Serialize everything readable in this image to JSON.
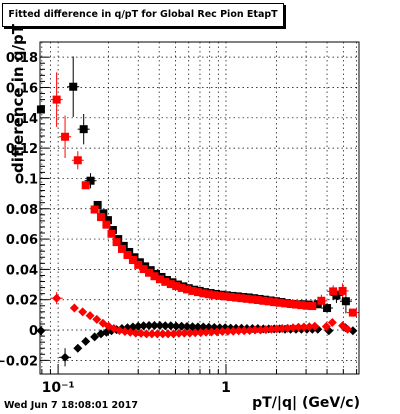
{
  "title": "Fitted difference in q/pT for Global Rec Pion EtapT",
  "datestamp": "Wed Jun  7 18:08:01 2017",
  "colors": {
    "red": "#ff0000",
    "black": "#000000"
  },
  "chart_data": {
    "type": "scatter",
    "title": "Fitted difference in q/pT for Global Rec Pion EtapT",
    "xlabel": "pT/|q| (GeV/c)",
    "ylabel": "difference in q/pT",
    "xscale": "log",
    "xlim": [
      0.078,
      6.2
    ],
    "ylim": [
      -0.029,
      0.19
    ],
    "grid": true,
    "x_tick_labels": [
      {
        "value": 0.1,
        "text": "10⁻¹"
      },
      {
        "value": 1,
        "text": "1"
      }
    ],
    "y_ticks": [
      -0.02,
      0,
      0.02,
      0.04,
      0.06,
      0.08,
      0.1,
      0.12,
      0.14,
      0.16,
      0.18
    ],
    "y_tick_labels": [
      "−0.02",
      "0",
      "0.02",
      "0.04",
      "0.06",
      "0.08",
      "0.1",
      "0.12",
      "0.14",
      "0.16",
      "0.18"
    ],
    "series": [
      {
        "color": "#000000",
        "marker": "square",
        "points": [
          [
            0.079,
            0.1455,
            null
          ],
          [
            0.123,
            0.1605,
            0.02
          ],
          [
            0.142,
            0.1325,
            0.01
          ],
          [
            0.156,
            0.0985,
            0.005
          ],
          [
            0.172,
            0.0825,
            0
          ],
          [
            0.186,
            0.077,
            0
          ],
          [
            0.198,
            0.0725,
            0
          ],
          [
            0.212,
            0.066,
            0
          ],
          [
            0.228,
            0.06,
            0
          ],
          [
            0.246,
            0.0555,
            0
          ],
          [
            0.265,
            0.0515,
            0
          ],
          [
            0.285,
            0.048,
            0
          ],
          [
            0.307,
            0.0447,
            0
          ],
          [
            0.33,
            0.042,
            0
          ],
          [
            0.356,
            0.0395,
            0
          ],
          [
            0.383,
            0.037,
            0
          ],
          [
            0.413,
            0.035,
            0
          ],
          [
            0.445,
            0.033,
            0
          ],
          [
            0.48,
            0.0315,
            0
          ],
          [
            0.517,
            0.03,
            0
          ],
          [
            0.557,
            0.0288,
            0
          ],
          [
            0.6,
            0.0276,
            0
          ],
          [
            0.647,
            0.0266,
            0
          ],
          [
            0.697,
            0.0258,
            0
          ],
          [
            0.751,
            0.025,
            0
          ],
          [
            0.809,
            0.0244,
            0
          ],
          [
            0.872,
            0.0238,
            0
          ],
          [
            0.94,
            0.0233,
            0
          ],
          [
            1.013,
            0.0229,
            0
          ],
          [
            1.091,
            0.0225,
            0
          ],
          [
            1.176,
            0.0222,
            0
          ],
          [
            1.267,
            0.0218,
            0
          ],
          [
            1.366,
            0.0215,
            0
          ],
          [
            1.472,
            0.021,
            0
          ],
          [
            1.586,
            0.0205,
            0
          ],
          [
            1.709,
            0.02,
            0
          ],
          [
            1.842,
            0.0195,
            0
          ],
          [
            1.985,
            0.019,
            0
          ],
          [
            2.139,
            0.0185,
            0
          ],
          [
            2.305,
            0.0178,
            0
          ],
          [
            2.484,
            0.0172,
            0
          ],
          [
            2.677,
            0.017,
            0
          ],
          [
            2.885,
            0.017,
            0
          ],
          [
            3.11,
            0.0168,
            0
          ],
          [
            3.515,
            0.017,
            0
          ],
          [
            4.0,
            0.0145,
            0.003
          ],
          [
            4.55,
            0.0228,
            0.005
          ],
          [
            5.18,
            0.019,
            0.008
          ]
        ]
      },
      {
        "color": "#ff0000",
        "marker": "square",
        "points": [
          [
            0.098,
            0.152,
            0.018
          ],
          [
            0.11,
            0.1275,
            0.014
          ],
          [
            0.131,
            0.112,
            0.006
          ],
          [
            0.146,
            0.0955,
            0
          ],
          [
            0.165,
            0.0795,
            0
          ],
          [
            0.18,
            0.0745,
            0
          ],
          [
            0.194,
            0.0695,
            0
          ],
          [
            0.208,
            0.0635,
            0
          ],
          [
            0.223,
            0.058,
            0
          ],
          [
            0.24,
            0.0535,
            0
          ],
          [
            0.259,
            0.0495,
            0
          ],
          [
            0.279,
            0.0462,
            0
          ],
          [
            0.3,
            0.043,
            0
          ],
          [
            0.323,
            0.0402,
            0
          ],
          [
            0.348,
            0.0378,
            0
          ],
          [
            0.375,
            0.0355,
            0
          ],
          [
            0.404,
            0.0335,
            0
          ],
          [
            0.435,
            0.0318,
            0
          ],
          [
            0.469,
            0.0303,
            0
          ],
          [
            0.505,
            0.029,
            0
          ],
          [
            0.544,
            0.0278,
            0
          ],
          [
            0.586,
            0.0268,
            0
          ],
          [
            0.632,
            0.0258,
            0
          ],
          [
            0.681,
            0.025,
            0
          ],
          [
            0.733,
            0.0242,
            0
          ],
          [
            0.79,
            0.0236,
            0
          ],
          [
            0.852,
            0.023,
            0
          ],
          [
            0.918,
            0.0226,
            0
          ],
          [
            0.989,
            0.0222,
            0
          ],
          [
            1.066,
            0.0218,
            0
          ],
          [
            1.148,
            0.0214,
            0
          ],
          [
            1.237,
            0.021,
            0
          ],
          [
            1.333,
            0.0206,
            0
          ],
          [
            1.437,
            0.0202,
            0
          ],
          [
            1.548,
            0.0198,
            0
          ],
          [
            1.668,
            0.0193,
            0
          ],
          [
            1.797,
            0.0189,
            0
          ],
          [
            1.937,
            0.0184,
            0
          ],
          [
            2.087,
            0.018,
            0
          ],
          [
            2.249,
            0.0176,
            0
          ],
          [
            2.424,
            0.0172,
            0
          ],
          [
            2.612,
            0.0168,
            0
          ],
          [
            2.814,
            0.0164,
            0
          ],
          [
            3.033,
            0.016,
            0
          ],
          [
            3.268,
            0.0158,
            0
          ],
          [
            3.7,
            0.0193,
            0.004
          ],
          [
            4.35,
            0.0255,
            0.004
          ],
          [
            4.95,
            0.0258,
            0.005
          ],
          [
            5.7,
            0.0115,
            0.002
          ]
        ]
      },
      {
        "color": "#000000",
        "marker": "diamond",
        "points": [
          [
            0.079,
            -0.0005,
            0
          ],
          [
            0.11,
            -0.018,
            0.006
          ],
          [
            0.131,
            -0.012,
            0
          ],
          [
            0.146,
            -0.0075,
            0
          ],
          [
            0.165,
            -0.0045,
            0
          ],
          [
            0.18,
            -0.0025,
            0
          ],
          [
            0.194,
            -0.0015,
            0
          ],
          [
            0.208,
            -0.0005,
            0
          ],
          [
            0.223,
            0.0003,
            0
          ],
          [
            0.24,
            0.001,
            0
          ],
          [
            0.259,
            0.0015,
            0
          ],
          [
            0.279,
            0.002,
            0
          ],
          [
            0.3,
            0.0025,
            0
          ],
          [
            0.323,
            0.0028,
            0
          ],
          [
            0.348,
            0.003,
            0
          ],
          [
            0.375,
            0.003,
            0
          ],
          [
            0.404,
            0.003,
            0
          ],
          [
            0.435,
            0.0028,
            0
          ],
          [
            0.469,
            0.0028,
            0
          ],
          [
            0.505,
            0.0025,
            0
          ],
          [
            0.544,
            0.0025,
            0
          ],
          [
            0.586,
            0.0023,
            0
          ],
          [
            0.632,
            0.0022,
            0
          ],
          [
            0.681,
            0.002,
            0
          ],
          [
            0.733,
            0.002,
            0
          ],
          [
            0.79,
            0.0018,
            0
          ],
          [
            0.852,
            0.0017,
            0
          ],
          [
            0.918,
            0.0015,
            0
          ],
          [
            0.989,
            0.0015,
            0
          ],
          [
            1.066,
            0.0013,
            0
          ],
          [
            1.148,
            0.0012,
            0
          ],
          [
            1.237,
            0.0012,
            0
          ],
          [
            1.333,
            0.001,
            0
          ],
          [
            1.437,
            0.001,
            0
          ],
          [
            1.548,
            0.001,
            0
          ],
          [
            1.668,
            0.0008,
            0
          ],
          [
            1.797,
            0.0008,
            0
          ],
          [
            1.937,
            0.0008,
            0
          ],
          [
            2.087,
            0.0008,
            0
          ],
          [
            2.249,
            0.0005,
            0
          ],
          [
            2.424,
            0.0005,
            0
          ],
          [
            2.612,
            0.0005,
            0
          ],
          [
            2.814,
            0.0005,
            0
          ],
          [
            3.033,
            0.0005,
            0
          ],
          [
            3.268,
            0.0005,
            0
          ],
          [
            3.522,
            0.0005,
            0
          ],
          [
            4.1,
            -0.0005,
            0
          ],
          [
            5.15,
            0.0015,
            0
          ],
          [
            5.7,
            -0.0005,
            0
          ]
        ]
      },
      {
        "color": "#ff0000",
        "marker": "diamond",
        "points": [
          [
            0.098,
            0.021,
            0.004
          ],
          [
            0.125,
            0.0145,
            0
          ],
          [
            0.14,
            0.012,
            0
          ],
          [
            0.155,
            0.0095,
            0
          ],
          [
            0.17,
            0.007,
            0
          ],
          [
            0.185,
            0.0045,
            0
          ],
          [
            0.2,
            0.0025,
            0
          ],
          [
            0.215,
            0.001,
            0
          ],
          [
            0.232,
            -0.0003,
            0
          ],
          [
            0.25,
            -0.001,
            0
          ],
          [
            0.269,
            -0.0015,
            0
          ],
          [
            0.29,
            -0.002,
            0
          ],
          [
            0.312,
            -0.0022,
            0
          ],
          [
            0.336,
            -0.0025,
            0
          ],
          [
            0.362,
            -0.0025,
            0
          ],
          [
            0.39,
            -0.0025,
            0
          ],
          [
            0.42,
            -0.0025,
            0
          ],
          [
            0.452,
            -0.0025,
            0
          ],
          [
            0.487,
            -0.0025,
            0
          ],
          [
            0.524,
            -0.0022,
            0
          ],
          [
            0.565,
            -0.002,
            0
          ],
          [
            0.609,
            -0.002,
            0
          ],
          [
            0.656,
            -0.0018,
            0
          ],
          [
            0.707,
            -0.0017,
            0
          ],
          [
            0.761,
            -0.0015,
            0
          ],
          [
            0.82,
            -0.0013,
            0
          ],
          [
            0.884,
            -0.0012,
            0
          ],
          [
            0.952,
            -0.001,
            0
          ],
          [
            1.026,
            -0.0008,
            0
          ],
          [
            1.105,
            -0.0008,
            0
          ],
          [
            1.19,
            -0.0005,
            0
          ],
          [
            1.283,
            -0.0005,
            0
          ],
          [
            1.382,
            -0.0003,
            0
          ],
          [
            1.489,
            0,
            0
          ],
          [
            1.604,
            0,
            0
          ],
          [
            1.728,
            0.0003,
            0
          ],
          [
            1.862,
            0.0005,
            0
          ],
          [
            2.006,
            0.0008,
            0
          ],
          [
            2.161,
            0.001,
            0
          ],
          [
            2.329,
            0.0012,
            0
          ],
          [
            2.509,
            0.0015,
            0
          ],
          [
            2.703,
            0.0018,
            0
          ],
          [
            2.913,
            0.002,
            0
          ],
          [
            3.138,
            0.0022,
            0
          ],
          [
            3.381,
            0.0025,
            0
          ],
          [
            3.96,
            0.0023,
            0
          ],
          [
            4.3,
            0.005,
            0
          ],
          [
            4.95,
            0.0028,
            0
          ],
          [
            5.3,
            0.0005,
            0
          ]
        ]
      }
    ]
  }
}
